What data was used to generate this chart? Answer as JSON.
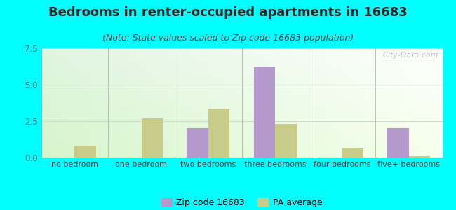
{
  "title": "Bedrooms in renter-occupied apartments in 16683",
  "subtitle": "(Note: State values scaled to Zip code 16683 population)",
  "categories": [
    "no bedroom",
    "one bedroom",
    "two bedrooms",
    "three bedrooms",
    "four bedrooms",
    "five+ bedrooms"
  ],
  "zip_values": [
    0,
    0,
    2.0,
    6.2,
    0,
    2.0
  ],
  "pa_values": [
    0.8,
    2.7,
    3.3,
    2.3,
    0.65,
    0.12
  ],
  "zip_color": "#b399cc",
  "pa_color": "#c8cc88",
  "ylim": [
    0,
    7.5
  ],
  "yticks": [
    0,
    2.5,
    5,
    7.5
  ],
  "background_color": "#00ffff",
  "bar_width": 0.32,
  "title_fontsize": 13,
  "subtitle_fontsize": 9,
  "legend_label_zip": "Zip code 16683",
  "legend_label_pa": "PA average",
  "watermark": "City-Data.com"
}
